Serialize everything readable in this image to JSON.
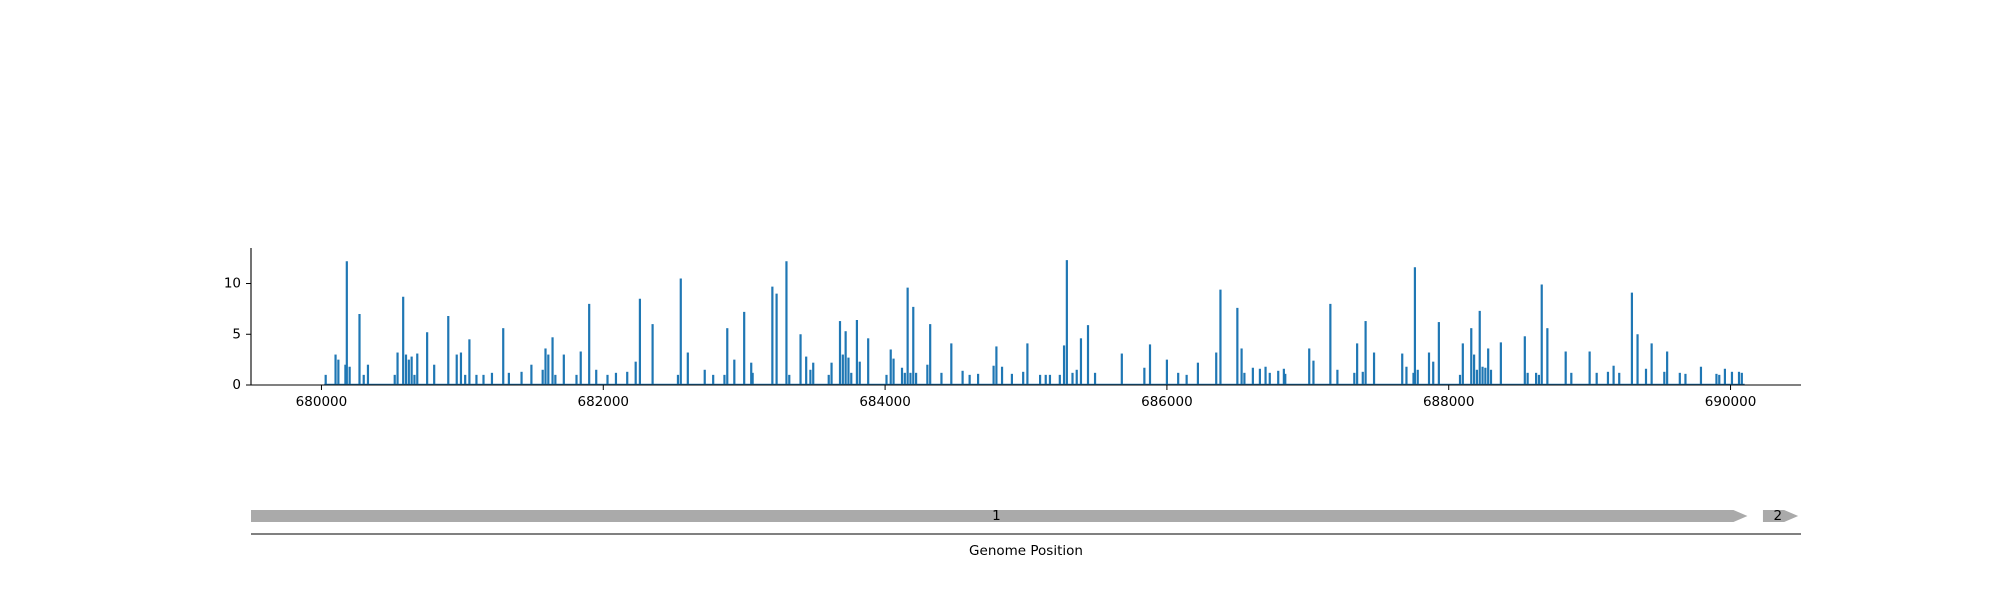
{
  "colors": {
    "bars": "#1f77b4",
    "genes": "#aaaaaa",
    "axis": "#000000"
  },
  "chart_data": {
    "type": "bar",
    "title": "",
    "xlabel": "Genome Position",
    "ylabel": "",
    "xlim": [
      679500,
      690500
    ],
    "ylim": [
      0,
      13.5
    ],
    "grid": false,
    "x_ticks": [
      680000,
      682000,
      684000,
      686000,
      688000,
      690000
    ],
    "x_tick_labels": [
      "680000",
      "682000",
      "684000",
      "686000",
      "688000",
      "690000"
    ],
    "y_ticks": [
      0,
      5,
      10
    ],
    "y_tick_labels": [
      "0",
      "5",
      "10"
    ],
    "bars": [
      [
        680030,
        1
      ],
      [
        680100,
        3
      ],
      [
        680120,
        2.5
      ],
      [
        680170,
        2
      ],
      [
        680180,
        12.2
      ],
      [
        680200,
        1.8
      ],
      [
        680270,
        7
      ],
      [
        680300,
        1
      ],
      [
        680330,
        2
      ],
      [
        680520,
        1
      ],
      [
        680540,
        3.2
      ],
      [
        680580,
        8.7
      ],
      [
        680600,
        3
      ],
      [
        680620,
        2.5
      ],
      [
        680640,
        2.8
      ],
      [
        680660,
        1
      ],
      [
        680680,
        3.1
      ],
      [
        680750,
        5.2
      ],
      [
        680800,
        2
      ],
      [
        680900,
        6.8
      ],
      [
        680960,
        3
      ],
      [
        680990,
        3.2
      ],
      [
        681020,
        1
      ],
      [
        681050,
        4.5
      ],
      [
        681100,
        1
      ],
      [
        681150,
        1
      ],
      [
        681210,
        1.2
      ],
      [
        681290,
        5.6
      ],
      [
        681330,
        1.2
      ],
      [
        681420,
        1.3
      ],
      [
        681490,
        2
      ],
      [
        681570,
        1.5
      ],
      [
        681590,
        3.6
      ],
      [
        681610,
        3
      ],
      [
        681640,
        4.7
      ],
      [
        681660,
        1
      ],
      [
        681720,
        3
      ],
      [
        681810,
        1
      ],
      [
        681840,
        3.3
      ],
      [
        681900,
        8
      ],
      [
        681950,
        1.5
      ],
      [
        682030,
        1
      ],
      [
        682090,
        1.2
      ],
      [
        682170,
        1.3
      ],
      [
        682230,
        2.3
      ],
      [
        682260,
        8.5
      ],
      [
        682350,
        6
      ],
      [
        682530,
        1
      ],
      [
        682550,
        10.5
      ],
      [
        682600,
        3.2
      ],
      [
        682720,
        1.5
      ],
      [
        682780,
        1
      ],
      [
        682860,
        1
      ],
      [
        682880,
        5.6
      ],
      [
        682930,
        2.5
      ],
      [
        683000,
        7.2
      ],
      [
        683050,
        2.2
      ],
      [
        683060,
        1.2
      ],
      [
        683200,
        9.7
      ],
      [
        683230,
        9
      ],
      [
        683300,
        12.2
      ],
      [
        683320,
        1
      ],
      [
        683400,
        5
      ],
      [
        683440,
        2.8
      ],
      [
        683470,
        1.5
      ],
      [
        683490,
        2.2
      ],
      [
        683600,
        1
      ],
      [
        683620,
        2.2
      ],
      [
        683680,
        6.3
      ],
      [
        683700,
        3
      ],
      [
        683720,
        5.3
      ],
      [
        683740,
        2.7
      ],
      [
        683760,
        1.2
      ],
      [
        683800,
        6.4
      ],
      [
        683820,
        2.3
      ],
      [
        683880,
        4.6
      ],
      [
        684010,
        1
      ],
      [
        684040,
        3.5
      ],
      [
        684060,
        2.6
      ],
      [
        684120,
        1.7
      ],
      [
        684140,
        1.2
      ],
      [
        684160,
        9.6
      ],
      [
        684180,
        1.2
      ],
      [
        684200,
        7.7
      ],
      [
        684220,
        1.2
      ],
      [
        684300,
        2
      ],
      [
        684320,
        6
      ],
      [
        684400,
        1.2
      ],
      [
        684470,
        4.1
      ],
      [
        684550,
        1.4
      ],
      [
        684600,
        1
      ],
      [
        684660,
        1.1
      ],
      [
        684770,
        1.9
      ],
      [
        684790,
        3.8
      ],
      [
        684830,
        1.8
      ],
      [
        684900,
        1.1
      ],
      [
        684980,
        1.3
      ],
      [
        685010,
        4.1
      ],
      [
        685100,
        1
      ],
      [
        685140,
        1
      ],
      [
        685170,
        1
      ],
      [
        685240,
        1
      ],
      [
        685270,
        3.9
      ],
      [
        685290,
        12.3
      ],
      [
        685330,
        1.2
      ],
      [
        685360,
        1.5
      ],
      [
        685390,
        4.6
      ],
      [
        685440,
        5.9
      ],
      [
        685490,
        1.2
      ],
      [
        685680,
        3.1
      ],
      [
        685840,
        1.7
      ],
      [
        685880,
        4
      ],
      [
        686000,
        2.5
      ],
      [
        686080,
        1.2
      ],
      [
        686140,
        1
      ],
      [
        686220,
        2.2
      ],
      [
        686350,
        3.2
      ],
      [
        686380,
        9.4
      ],
      [
        686500,
        7.6
      ],
      [
        686530,
        3.6
      ],
      [
        686550,
        1.2
      ],
      [
        686610,
        1.7
      ],
      [
        686660,
        1.6
      ],
      [
        686700,
        1.8
      ],
      [
        686730,
        1.2
      ],
      [
        686790,
        1.4
      ],
      [
        686830,
        1.6
      ],
      [
        686840,
        1.1
      ],
      [
        687010,
        3.6
      ],
      [
        687040,
        2.4
      ],
      [
        687160,
        8
      ],
      [
        687210,
        1.5
      ],
      [
        687330,
        1.2
      ],
      [
        687350,
        4.1
      ],
      [
        687390,
        1.3
      ],
      [
        687410,
        6.3
      ],
      [
        687470,
        3.2
      ],
      [
        687670,
        3.1
      ],
      [
        687700,
        1.8
      ],
      [
        687750,
        1.2
      ],
      [
        687760,
        11.6
      ],
      [
        687780,
        1.5
      ],
      [
        687860,
        3.2
      ],
      [
        687890,
        2.3
      ],
      [
        687930,
        6.2
      ],
      [
        688080,
        1
      ],
      [
        688100,
        4.1
      ],
      [
        688160,
        5.6
      ],
      [
        688180,
        3
      ],
      [
        688200,
        1.5
      ],
      [
        688220,
        7.3
      ],
      [
        688240,
        1.8
      ],
      [
        688260,
        1.7
      ],
      [
        688280,
        3.6
      ],
      [
        688300,
        1.5
      ],
      [
        688370,
        4.2
      ],
      [
        688540,
        4.8
      ],
      [
        688560,
        1.2
      ],
      [
        688620,
        1.2
      ],
      [
        688640,
        1
      ],
      [
        688660,
        9.9
      ],
      [
        688700,
        5.6
      ],
      [
        688830,
        3.3
      ],
      [
        688870,
        1.2
      ],
      [
        689000,
        3.3
      ],
      [
        689050,
        1.2
      ],
      [
        689130,
        1.3
      ],
      [
        689170,
        1.9
      ],
      [
        689210,
        1.2
      ],
      [
        689300,
        9.1
      ],
      [
        689340,
        5
      ],
      [
        689400,
        1.6
      ],
      [
        689440,
        4.1
      ],
      [
        689530,
        1.3
      ],
      [
        689550,
        3.3
      ],
      [
        689640,
        1.2
      ],
      [
        689680,
        1.1
      ],
      [
        689790,
        1.8
      ],
      [
        689900,
        1.1
      ],
      [
        689920,
        1
      ],
      [
        689960,
        1.6
      ],
      [
        690010,
        1.3
      ],
      [
        690060,
        1.3
      ],
      [
        690080,
        1.2
      ]
    ],
    "genes": [
      {
        "label": "1",
        "start": 679500,
        "end": 690120
      },
      {
        "label": "2",
        "start": 690230,
        "end": 690480
      }
    ]
  }
}
